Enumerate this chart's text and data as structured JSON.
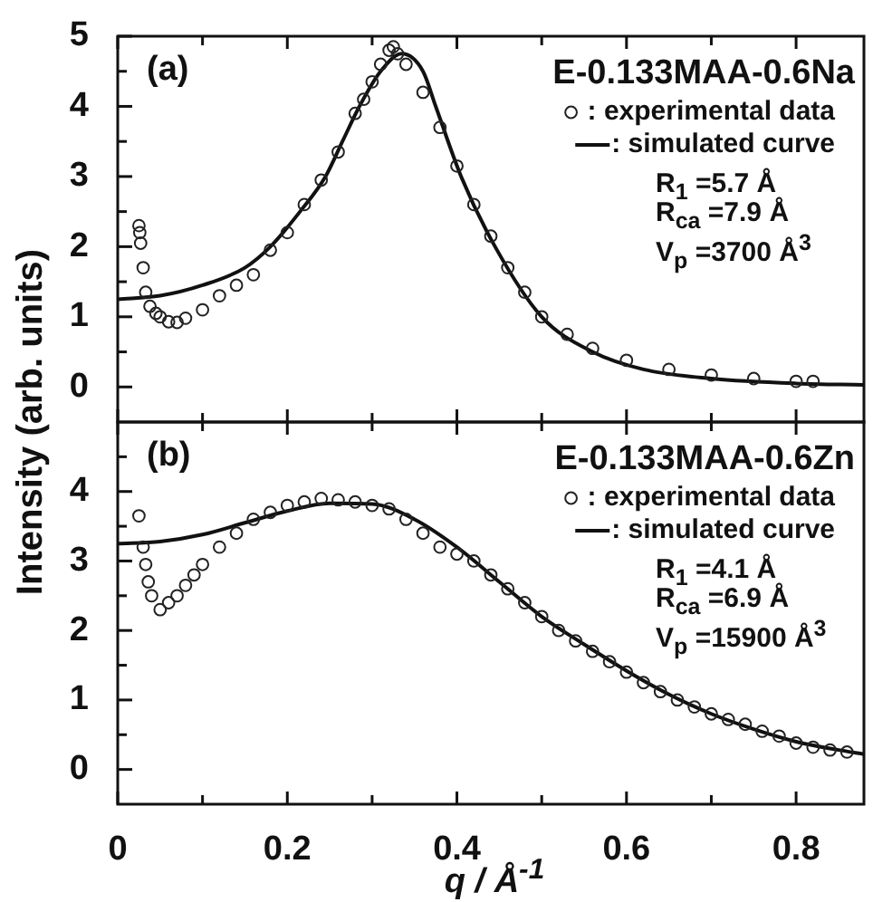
{
  "chart_data": [
    {
      "type": "scatter",
      "title": "E-0.133MAA-0.6Na",
      "ylabel": "Intensity (arb. units)",
      "legend": "top right",
      "grid": false,
      "tick_labels": "y",
      "xlim": [
        0,
        0.88
      ],
      "ylim": [
        -0.5,
        5
      ],
      "xticks": [
        0,
        {
          "value": 0.1,
          "label": null
        },
        0.2,
        {
          "value": 0.3,
          "label": null
        },
        0.4,
        {
          "value": 0.5,
          "label": null
        },
        0.6,
        {
          "value": 0.7,
          "label": null
        },
        0.8
      ],
      "yticks": [
        0,
        {
          "value": 0.5,
          "label": null
        },
        1,
        {
          "value": 1.5,
          "label": null
        },
        2,
        {
          "value": 2.5,
          "label": null
        },
        3,
        {
          "value": 3.5,
          "label": null
        },
        4,
        {
          "value": 4.5,
          "label": null
        },
        5
      ],
      "annotations": [
        "(a)",
        "R$_{1}$ =5.7 Å",
        "R$_{ca}$ =7.9 Å",
        "V$_{p}$ =3700 Å$^{3}$"
      ],
      "series": [
        {
          "name": ": experimental data",
          "type": "scatter",
          "marker": "circle",
          "color": "#222222",
          "x": [
            0.025,
            0.026,
            0.027,
            0.03,
            0.033,
            0.038,
            0.045,
            0.05,
            0.06,
            0.07,
            0.08,
            0.1,
            0.12,
            0.14,
            0.16,
            0.18,
            0.2,
            0.22,
            0.24,
            0.26,
            0.28,
            0.29,
            0.3,
            0.31,
            0.32,
            0.325,
            0.33,
            0.34,
            0.36,
            0.38,
            0.4,
            0.42,
            0.44,
            0.46,
            0.48,
            0.5,
            0.53,
            0.56,
            0.6,
            0.65,
            0.7,
            0.75,
            0.8,
            0.82
          ],
          "values": [
            2.3,
            2.2,
            2.05,
            1.7,
            1.35,
            1.15,
            1.05,
            1.0,
            0.93,
            0.92,
            0.98,
            1.1,
            1.3,
            1.45,
            1.6,
            1.95,
            2.2,
            2.6,
            2.95,
            3.35,
            3.9,
            4.1,
            4.35,
            4.6,
            4.8,
            4.85,
            4.75,
            4.6,
            4.2,
            3.7,
            3.15,
            2.6,
            2.15,
            1.7,
            1.35,
            1.0,
            0.75,
            0.55,
            0.38,
            0.25,
            0.17,
            0.12,
            0.08,
            0.08
          ]
        },
        {
          "name": ": simulated curve",
          "type": "line",
          "marker": "none",
          "color": "#111111",
          "x": [
            0,
            0.05,
            0.1,
            0.15,
            0.18,
            0.215,
            0.245,
            0.265,
            0.285,
            0.31,
            0.335,
            0.36,
            0.375,
            0.405,
            0.445,
            0.5,
            0.56,
            0.62,
            0.7,
            0.8,
            0.88
          ],
          "values": [
            1.25,
            1.3,
            1.45,
            1.7,
            2,
            2.5,
            3,
            3.5,
            4,
            4.5,
            4.75,
            4.5,
            4,
            3,
            2,
            1,
            0.5,
            0.25,
            0.12,
            0.05,
            0.03
          ]
        }
      ]
    },
    {
      "type": "scatter",
      "title": "E-0.133MAA-0.6Zn",
      "xlabel": "q / Å$^{-1}$",
      "legend": "top right",
      "grid": false,
      "xlim": [
        0,
        0.88
      ],
      "ylim": [
        -0.5,
        5
      ],
      "xticks": [
        0,
        {
          "value": 0.1,
          "label": null
        },
        0.2,
        {
          "value": 0.3,
          "label": null
        },
        0.4,
        {
          "value": 0.5,
          "label": null
        },
        0.6,
        {
          "value": 0.7,
          "label": null
        },
        0.8
      ],
      "yticks": [
        0,
        {
          "value": 0.5,
          "label": null
        },
        1,
        {
          "value": 1.5,
          "label": null
        },
        2,
        {
          "value": 2.5,
          "label": null
        },
        3,
        {
          "value": 3.5,
          "label": null
        },
        4,
        {
          "value": 4.5,
          "label": null
        }
      ],
      "annotations": [
        "(b)",
        "R$_{1}$ =4.1 Å",
        "R$_{ca}$ =6.9 Å",
        "V$_{p}$ =15900 Å$^{3}$"
      ],
      "series": [
        {
          "name": ": experimental data",
          "type": "scatter",
          "marker": "circle",
          "color": "#222222",
          "x": [
            0.025,
            0.03,
            0.033,
            0.036,
            0.04,
            0.05,
            0.06,
            0.07,
            0.08,
            0.09,
            0.1,
            0.12,
            0.14,
            0.16,
            0.18,
            0.2,
            0.22,
            0.24,
            0.26,
            0.28,
            0.3,
            0.32,
            0.34,
            0.36,
            0.38,
            0.4,
            0.42,
            0.44,
            0.46,
            0.48,
            0.5,
            0.52,
            0.54,
            0.56,
            0.58,
            0.6,
            0.62,
            0.64,
            0.66,
            0.68,
            0.7,
            0.72,
            0.74,
            0.76,
            0.78,
            0.8,
            0.82,
            0.84,
            0.86
          ],
          "values": [
            3.65,
            3.2,
            2.95,
            2.7,
            2.5,
            2.3,
            2.4,
            2.5,
            2.65,
            2.8,
            2.95,
            3.2,
            3.4,
            3.6,
            3.7,
            3.8,
            3.85,
            3.9,
            3.88,
            3.85,
            3.8,
            3.75,
            3.6,
            3.4,
            3.2,
            3.1,
            3.0,
            2.8,
            2.6,
            2.4,
            2.2,
            2.0,
            1.85,
            1.7,
            1.55,
            1.4,
            1.25,
            1.12,
            1.0,
            0.9,
            0.8,
            0.72,
            0.65,
            0.55,
            0.48,
            0.38,
            0.32,
            0.28,
            0.25
          ]
        },
        {
          "name": ": simulated curve",
          "type": "line",
          "marker": "none",
          "color": "#111111",
          "x": [
            0,
            0.05,
            0.1,
            0.15,
            0.2,
            0.25,
            0.3,
            0.35,
            0.4,
            0.45,
            0.5,
            0.55,
            0.6,
            0.65,
            0.7,
            0.75,
            0.8,
            0.85,
            0.88
          ],
          "values": [
            3.25,
            3.28,
            3.38,
            3.55,
            3.72,
            3.83,
            3.82,
            3.6,
            3.2,
            2.7,
            2.2,
            1.8,
            1.42,
            1.08,
            0.8,
            0.58,
            0.4,
            0.28,
            0.22
          ]
        }
      ]
    }
  ]
}
